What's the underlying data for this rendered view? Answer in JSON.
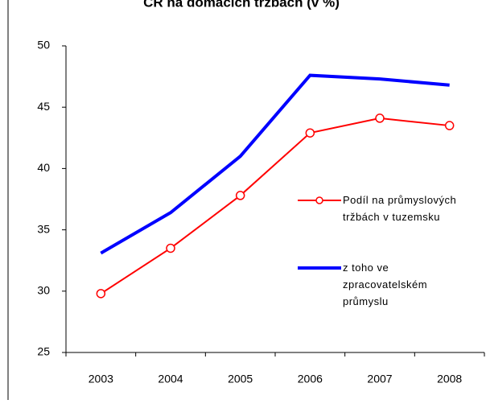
{
  "chart_data": {
    "type": "line",
    "title": "ČR na domácích tržbách (v %)",
    "categories": [
      "2003",
      "2004",
      "2005",
      "2006",
      "2007",
      "2008"
    ],
    "series": [
      {
        "name": "Podíl na průmyslových tržbách v tuzemsku",
        "color": "#ff0000",
        "values": [
          29.8,
          33.5,
          37.8,
          42.9,
          44.1,
          43.5
        ]
      },
      {
        "name": "z toho ve zpracovatelském průmyslu",
        "color": "#0000ff",
        "values": [
          33.1,
          36.4,
          41.0,
          47.6,
          47.3,
          46.8
        ]
      }
    ],
    "ylim": [
      25,
      50
    ],
    "yticks": [
      25,
      30,
      35,
      40,
      45,
      50
    ]
  }
}
